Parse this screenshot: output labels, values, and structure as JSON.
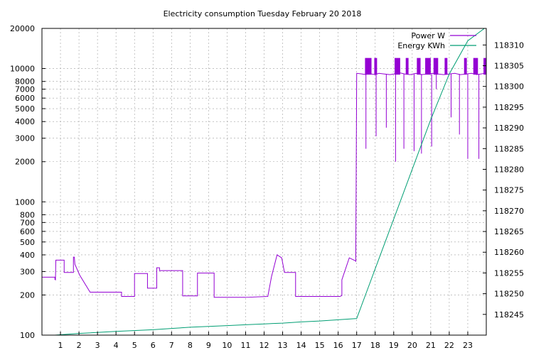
{
  "chart_data": {
    "type": "line",
    "title": "Electricity consumption Tuesday February 20 2018",
    "x_ticks": [
      1,
      2,
      3,
      4,
      5,
      6,
      7,
      8,
      9,
      10,
      11,
      12,
      13,
      14,
      15,
      16,
      17,
      18,
      19,
      20,
      21,
      22,
      23
    ],
    "xlim": [
      0,
      24
    ],
    "y_left": {
      "scale": "log",
      "lim": [
        100,
        20000
      ],
      "ticks": [
        100,
        200,
        300,
        400,
        500,
        600,
        700,
        800,
        1000,
        2000,
        3000,
        4000,
        5000,
        6000,
        7000,
        8000,
        10000,
        20000
      ]
    },
    "y_right": {
      "scale": "linear",
      "lim": [
        118240,
        118314
      ],
      "ticks": [
        118245,
        118250,
        118255,
        118260,
        118265,
        118270,
        118275,
        118280,
        118285,
        118290,
        118295,
        118300,
        118305,
        118310
      ]
    },
    "legend": {
      "placement": "top-right"
    },
    "grid": true,
    "series": [
      {
        "name": "Power W",
        "axis": "left",
        "color": "#9400d3",
        "x": [
          0,
          0.7,
          0.7,
          0.73,
          0.75,
          1.2,
          1.2,
          1.7,
          1.7,
          1.75,
          1.78,
          2.0,
          2.05,
          2.05,
          2.6,
          2.6,
          3.5,
          4.3,
          4.3,
          5.0,
          5.0,
          5.7,
          5.7,
          6.2,
          6.2,
          6.35,
          6.35,
          6.5,
          6.5,
          7.6,
          7.6,
          8.4,
          8.4,
          9.3,
          9.3,
          10.0,
          11.0,
          12.2,
          12.2,
          12.4,
          12.4,
          12.7,
          12.7,
          12.95,
          12.95,
          13.1,
          13.1,
          13.7,
          13.7,
          14.9,
          16.0,
          16.1,
          16.2,
          16.2,
          16.6,
          16.6,
          16.95,
          16.95,
          17.0,
          17.3,
          17.5,
          17.6,
          17.8,
          18.0,
          18.2,
          18.5,
          18.8,
          19.0,
          19.3,
          19.6,
          19.9,
          20.2,
          20.5,
          20.8,
          21.1,
          21.4,
          21.7,
          22.0,
          22.3,
          22.6,
          22.9,
          23.2,
          23.5,
          23.7,
          23.9
        ],
        "y": [
          272,
          272,
          262,
          260,
          365,
          365,
          295,
          295,
          385,
          385,
          340,
          290,
          280,
          280,
          210,
          210,
          210,
          210,
          195,
          195,
          290,
          290,
          225,
          225,
          320,
          320,
          305,
          305,
          305,
          305,
          197,
          197,
          292,
          292,
          192,
          192,
          192,
          195,
          195,
          275,
          275,
          400,
          400,
          380,
          380,
          295,
          295,
          295,
          195,
          195,
          195,
          195,
          198,
          260,
          380,
          380,
          360,
          355,
          9200,
          9100,
          9000,
          9200,
          9100,
          9000,
          9200,
          9100,
          9000,
          9100,
          9300,
          9100,
          9000,
          9200,
          9000,
          9100,
          9200,
          9100,
          9000,
          9100,
          9200,
          9000,
          9100,
          9200,
          9000,
          9100,
          9200
        ],
        "spikes": [
          {
            "x": 17.5,
            "y": 2500
          },
          {
            "x": 18.05,
            "y": 3100
          },
          {
            "x": 18.6,
            "y": 3600
          },
          {
            "x": 19.1,
            "y": 2000
          },
          {
            "x": 19.55,
            "y": 2500
          },
          {
            "x": 20.1,
            "y": 2400
          },
          {
            "x": 20.5,
            "y": 2300
          },
          {
            "x": 21.05,
            "y": 2600
          },
          {
            "x": 21.3,
            "y": 7000
          },
          {
            "x": 22.1,
            "y": 4300
          },
          {
            "x": 22.55,
            "y": 3200
          },
          {
            "x": 23.0,
            "y": 2100
          },
          {
            "x": 23.6,
            "y": 2100
          }
        ],
        "bursts": [
          {
            "x0": 17.45,
            "x1": 17.8,
            "top": 12000
          },
          {
            "x0": 17.95,
            "x1": 18.1,
            "top": 12000
          },
          {
            "x0": 19.05,
            "x1": 19.35,
            "top": 12000
          },
          {
            "x0": 19.65,
            "x1": 19.8,
            "top": 12000
          },
          {
            "x0": 20.25,
            "x1": 20.45,
            "top": 12000
          },
          {
            "x0": 20.7,
            "x1": 21.0,
            "top": 12000
          },
          {
            "x0": 21.15,
            "x1": 21.4,
            "top": 12000
          },
          {
            "x0": 21.75,
            "x1": 21.9,
            "top": 12000
          },
          {
            "x0": 22.8,
            "x1": 22.95,
            "top": 12000
          },
          {
            "x0": 23.3,
            "x1": 23.55,
            "top": 12000
          },
          {
            "x0": 23.85,
            "x1": 24.0,
            "top": 12000
          }
        ]
      },
      {
        "name": "Energy KWh",
        "axis": "right",
        "color": "#009e73",
        "x": [
          0.7,
          2,
          4,
          6,
          7,
          8,
          9,
          10,
          11,
          12,
          13,
          14,
          15,
          16,
          17,
          17.5,
          18,
          19,
          20,
          21,
          22,
          23,
          23.9
        ],
        "y": [
          118240,
          118240.4,
          118240.9,
          118241.3,
          118241.6,
          118241.9,
          118242.1,
          118242.3,
          118242.5,
          118242.7,
          118242.9,
          118243.2,
          118243.4,
          118243.7,
          118244,
          118250,
          118256,
          118268,
          118280,
          118292,
          118303,
          118311,
          118314
        ]
      }
    ]
  }
}
